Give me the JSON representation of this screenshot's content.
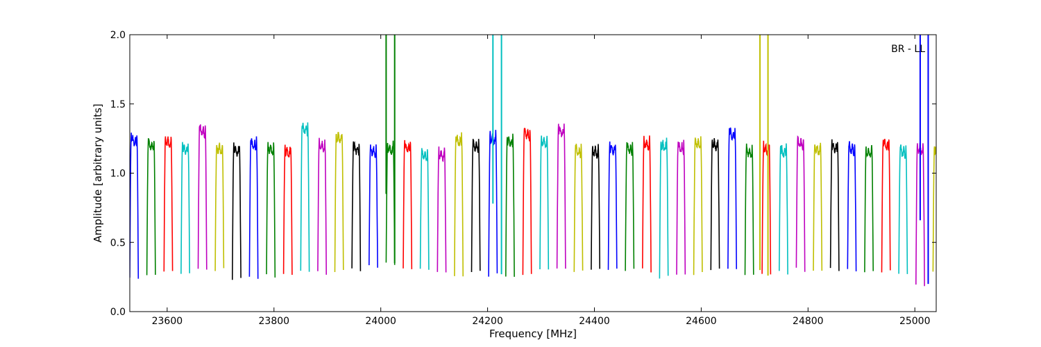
{
  "chart_data": {
    "type": "line",
    "annotation": "BR - LL",
    "xlabel": "Frequency [MHz]",
    "ylabel": "Amplitude [arbitrary units]",
    "xlim": [
      23530,
      25040
    ],
    "ylim": [
      0.0,
      2.0
    ],
    "x_ticks": [
      23600,
      23800,
      24000,
      24200,
      24400,
      24600,
      24800,
      25000
    ],
    "y_ticks": [
      "0.0",
      "0.5",
      "1.0",
      "1.5",
      "2.0"
    ],
    "grid": false,
    "legend": "none",
    "color_cycle": [
      "#0000ff",
      "#008000",
      "#ff0000",
      "#00bfbf",
      "#bf00bf",
      "#bfbf00",
      "#000000"
    ],
    "channel_width_mhz": 16,
    "channel_starts": [
      23530,
      23562,
      23594,
      23626,
      23658,
      23690,
      23722,
      23754,
      23786,
      23818,
      23850,
      23882,
      23914,
      23946,
      23978,
      24010,
      24042,
      24074,
      24106,
      24138,
      24170,
      24202,
      24234,
      24266,
      24298,
      24330,
      24362,
      24394,
      24426,
      24458,
      24490,
      24522,
      24554,
      24586,
      24618,
      24650,
      24682,
      24714,
      24746,
      24778,
      24810,
      24842,
      24874,
      24906,
      24938,
      24970,
      25002,
      25034
    ],
    "channel_peaks": [
      1.28,
      1.25,
      1.27,
      1.22,
      1.35,
      1.22,
      1.21,
      1.25,
      1.22,
      1.2,
      1.36,
      1.24,
      1.3,
      1.22,
      1.2,
      1.22,
      1.23,
      1.18,
      1.18,
      1.28,
      1.24,
      1.3,
      1.27,
      1.33,
      1.27,
      1.35,
      1.2,
      1.2,
      1.22,
      1.22,
      1.26,
      1.24,
      1.23,
      1.26,
      1.25,
      1.32,
      1.2,
      1.22,
      1.2,
      1.26,
      1.22,
      1.23,
      1.22,
      1.2,
      1.25,
      1.2,
      1.22,
      1.2
    ],
    "channel_troughs": [
      0.24,
      0.25,
      0.3,
      0.29,
      0.3,
      0.3,
      0.24,
      0.25,
      0.26,
      0.28,
      0.3,
      0.28,
      0.29,
      0.3,
      0.32,
      0.34,
      0.3,
      0.3,
      0.3,
      0.27,
      0.28,
      0.26,
      0.25,
      0.26,
      0.3,
      0.3,
      0.28,
      0.3,
      0.3,
      0.3,
      0.3,
      0.25,
      0.26,
      0.28,
      0.3,
      0.3,
      0.27,
      0.26,
      0.28,
      0.3,
      0.29,
      0.3,
      0.3,
      0.28,
      0.3,
      0.27,
      0.2,
      0.3
    ],
    "interference_spikes": [
      {
        "x": 24010,
        "ymax": 2.0,
        "ymin": 0.85,
        "color": "#008000"
      },
      {
        "x": 24026,
        "ymax": 2.0,
        "ymin": 0.35,
        "color": "#008000"
      },
      {
        "x": 24210,
        "ymax": 2.0,
        "ymin": 0.78,
        "color": "#00bfbf"
      },
      {
        "x": 24226,
        "ymax": 2.0,
        "ymin": 0.27,
        "color": "#00bfbf"
      },
      {
        "x": 24710,
        "ymax": 2.0,
        "ymin": 0.3,
        "color": "#bfbf00"
      },
      {
        "x": 24725,
        "ymax": 2.0,
        "ymin": 0.26,
        "color": "#bfbf00"
      },
      {
        "x": 25010,
        "ymax": 2.0,
        "ymin": 0.66,
        "color": "#0000ff"
      },
      {
        "x": 25025,
        "ymax": 2.0,
        "ymin": 0.2,
        "color": "#0000ff"
      }
    ]
  }
}
